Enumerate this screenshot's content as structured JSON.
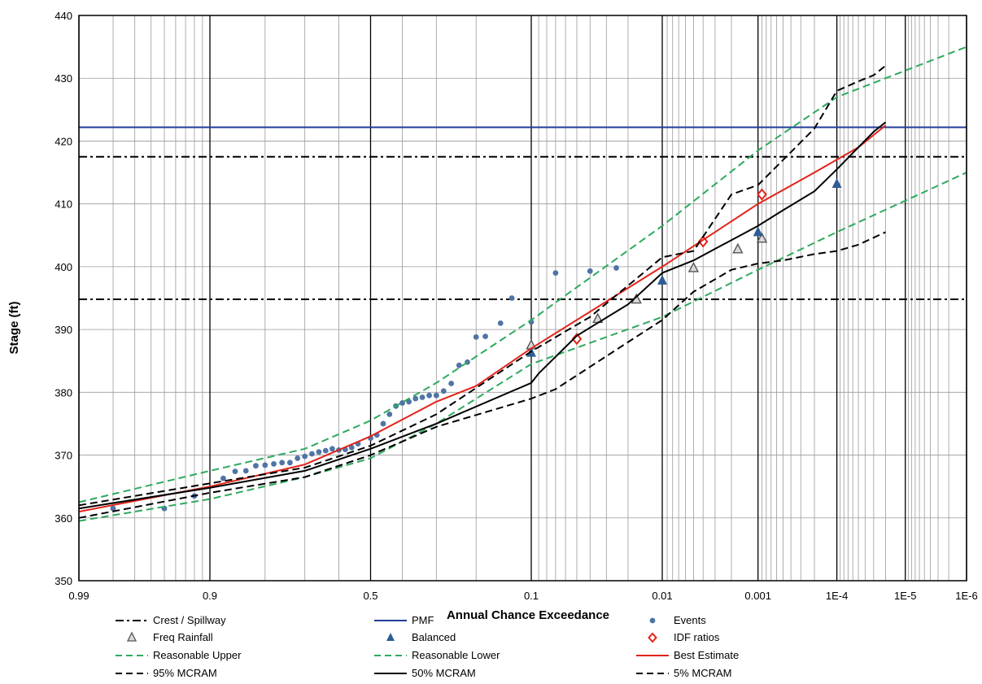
{
  "chart_data": {
    "type": "line",
    "xlabel": "Annual Chance Exceedance",
    "ylabel": "Stage (ft)",
    "x_scale": "normal-probability",
    "xlim": [
      0.99,
      1e-06
    ],
    "ylim": [
      350,
      440
    ],
    "grid": true,
    "legend_placement": "bottom",
    "x_ticks": [
      {
        "value": 0.99,
        "label": "0.99"
      },
      {
        "value": 0.9,
        "label": "0.9"
      },
      {
        "value": 0.5,
        "label": "0.5"
      },
      {
        "value": 0.1,
        "label": "0.1"
      },
      {
        "value": 0.01,
        "label": "0.01"
      },
      {
        "value": 0.001,
        "label": "0.001"
      },
      {
        "value": 0.0001,
        "label": "1E-4"
      },
      {
        "value": 1e-05,
        "label": "1E-5"
      },
      {
        "value": 1e-06,
        "label": "1E-6"
      }
    ],
    "y_ticks": [
      350,
      360,
      370,
      380,
      390,
      400,
      410,
      420,
      430,
      440
    ],
    "series": [
      {
        "name": "Crest / Spillway",
        "kind": "hline",
        "color": "#000000",
        "dash": "dashdot",
        "y": [
          417.5,
          394.8
        ]
      },
      {
        "name": "PMF",
        "kind": "hline",
        "color": "#1f3e9a",
        "dash": "solid",
        "y": [
          422.2
        ]
      },
      {
        "name": "Events",
        "kind": "points",
        "marker": "dot",
        "color": "#4f74a6",
        "x": [
          0.98,
          0.95,
          0.92,
          0.88,
          0.86,
          0.84,
          0.82,
          0.8,
          0.78,
          0.76,
          0.74,
          0.72,
          0.7,
          0.68,
          0.66,
          0.64,
          0.62,
          0.6,
          0.58,
          0.56,
          0.54,
          0.5,
          0.48,
          0.46,
          0.44,
          0.42,
          0.4,
          0.38,
          0.36,
          0.34,
          0.32,
          0.3,
          0.28,
          0.26,
          0.24,
          0.22,
          0.2,
          0.18,
          0.15,
          0.13,
          0.1,
          0.07,
          0.04,
          0.025
        ],
        "y": [
          361.5,
          361.5,
          363.5,
          366.3,
          367.4,
          367.5,
          368.3,
          368.4,
          368.6,
          368.8,
          368.8,
          369.5,
          369.8,
          370.2,
          370.5,
          370.7,
          371.0,
          370.8,
          370.9,
          371.2,
          371.8,
          372.7,
          373.2,
          375.0,
          376.5,
          377.8,
          378.3,
          378.5,
          379.0,
          379.2,
          379.5,
          379.5,
          380.2,
          381.4,
          384.3,
          384.8,
          388.8,
          388.9,
          391.0,
          395.0,
          391.2,
          399.0,
          399.3,
          399.8
        ]
      },
      {
        "name": "Freq Rainfall",
        "kind": "points",
        "marker": "triangle-open",
        "color": "#555555",
        "x": [
          0.1,
          0.035,
          0.017,
          0.005,
          0.0017,
          0.0009
        ],
        "y": [
          387.5,
          391.7,
          394.8,
          399.8,
          402.8,
          404.5
        ]
      },
      {
        "name": "Balanced",
        "kind": "points",
        "marker": "triangle",
        "color": "#2e5d94",
        "x": [
          0.1,
          0.01,
          0.001,
          0.0001
        ],
        "y": [
          386.3,
          397.8,
          405.5,
          413.2
        ]
      },
      {
        "name": "IDF ratios",
        "kind": "points",
        "marker": "diamond-open",
        "color": "#e2231a",
        "x": [
          0.05,
          0.004,
          0.0009
        ],
        "y": [
          388.5,
          404.0,
          411.5
        ]
      },
      {
        "name": "Reasonable Upper",
        "kind": "line",
        "color": "#2eaa5e",
        "dash": "dashed",
        "x": [
          0.99,
          0.9,
          0.7,
          0.5,
          0.3,
          0.1,
          0.01,
          0.001,
          0.0001,
          1e-06
        ],
        "y": [
          362.5,
          367.5,
          371.0,
          375.5,
          381.5,
          391.5,
          406.5,
          418.5,
          427.0,
          435.0
        ]
      },
      {
        "name": "Reasonable Lower",
        "kind": "line",
        "color": "#2eaa5e",
        "dash": "dashed",
        "x": [
          0.99,
          0.9,
          0.7,
          0.5,
          0.3,
          0.1,
          0.01,
          0.001,
          0.0001,
          1e-06
        ],
        "y": [
          359.5,
          363.0,
          366.5,
          369.5,
          375.0,
          384.5,
          392.0,
          399.5,
          405.5,
          415.0
        ]
      },
      {
        "name": "Best Estimate",
        "kind": "line",
        "color": "#e2231a",
        "dash": "solid",
        "x": [
          0.99,
          0.9,
          0.7,
          0.5,
          0.3,
          0.2,
          0.1,
          0.01,
          0.001,
          0.0002,
          5e-05,
          2e-05
        ],
        "y": [
          361.0,
          365.0,
          368.5,
          373.0,
          378.5,
          381.0,
          387.0,
          400.0,
          410.0,
          415.0,
          419.0,
          422.5
        ]
      },
      {
        "name": "95% MCRAM",
        "kind": "line",
        "color": "#000000",
        "dash": "dashed",
        "x": [
          0.99,
          0.9,
          0.7,
          0.5,
          0.3,
          0.1,
          0.04,
          0.01,
          0.005,
          0.002,
          0.001,
          0.0005,
          0.0002,
          0.0001,
          5e-05,
          3e-05,
          2e-05
        ],
        "y": [
          362.0,
          365.5,
          368.0,
          371.5,
          376.5,
          386.5,
          392.0,
          401.5,
          402.5,
          411.5,
          413.0,
          417.0,
          422.0,
          428.0,
          429.5,
          430.5,
          432.0
        ]
      },
      {
        "name": "50% MCRAM",
        "kind": "line",
        "color": "#000000",
        "dash": "solid",
        "x": [
          0.99,
          0.9,
          0.7,
          0.5,
          0.3,
          0.1,
          0.09,
          0.05,
          0.02,
          0.01,
          0.005,
          0.001,
          0.0005,
          0.0002,
          0.0001,
          5e-05,
          3e-05,
          2e-05
        ],
        "y": [
          361.5,
          364.8,
          367.5,
          371.0,
          375.0,
          381.5,
          383.0,
          389.0,
          394.0,
          399.0,
          401.0,
          406.5,
          409.0,
          412.0,
          415.5,
          419.0,
          421.5,
          423.0
        ]
      },
      {
        "name": "5% MCRAM",
        "kind": "line",
        "color": "#000000",
        "dash": "dashed",
        "x": [
          0.99,
          0.9,
          0.7,
          0.5,
          0.3,
          0.1,
          0.07,
          0.02,
          0.01,
          0.005,
          0.002,
          0.001,
          0.0005,
          0.0002,
          0.0001,
          5e-05,
          2e-05
        ],
        "y": [
          360.0,
          364.0,
          366.5,
          370.0,
          374.5,
          379.0,
          380.5,
          388.0,
          391.5,
          396.0,
          399.5,
          400.5,
          401.0,
          402.0,
          402.5,
          403.5,
          405.5
        ]
      }
    ],
    "legend": [
      {
        "label": "Crest / Spillway"
      },
      {
        "label": "PMF"
      },
      {
        "label": "Events"
      },
      {
        "label": "Freq Rainfall"
      },
      {
        "label": "Balanced"
      },
      {
        "label": "IDF ratios"
      },
      {
        "label": "Reasonable Upper"
      },
      {
        "label": "Reasonable Lower"
      },
      {
        "label": "Best Estimate"
      },
      {
        "label": "95% MCRAM"
      },
      {
        "label": "50% MCRAM"
      },
      {
        "label": "5% MCRAM"
      }
    ]
  }
}
